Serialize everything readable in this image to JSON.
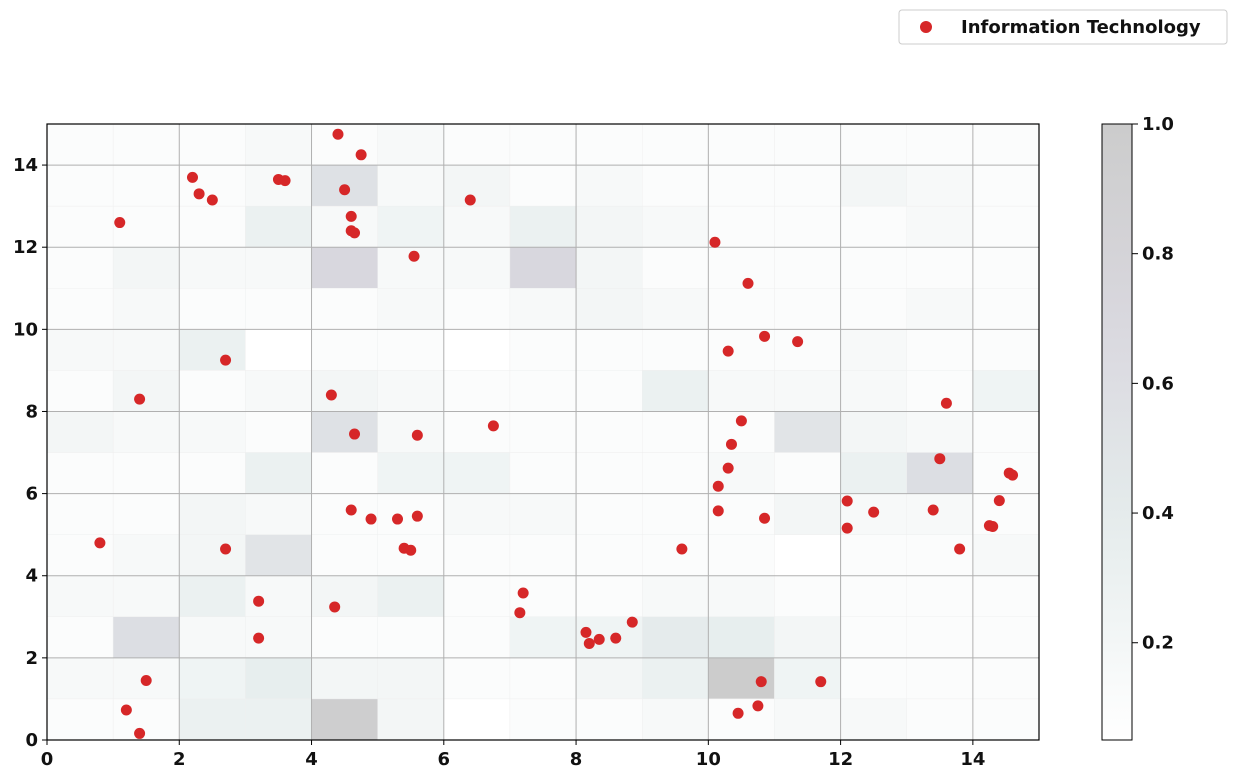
{
  "chart_data": {
    "type": "scatter",
    "title": "",
    "xlabel": "",
    "ylabel": "",
    "xlim": [
      0,
      15
    ],
    "ylim": [
      0,
      15
    ],
    "grid": true,
    "legend": {
      "placement": "top-right",
      "entries": [
        "Information Technology"
      ]
    },
    "x_ticks": [
      0,
      2,
      4,
      6,
      8,
      10,
      12,
      14
    ],
    "y_ticks": [
      0,
      2,
      4,
      6,
      8,
      10,
      12,
      14
    ],
    "series": [
      {
        "name": "Information Technology",
        "color": "#d62728",
        "points": [
          [
            0.8,
            4.8
          ],
          [
            1.1,
            12.6
          ],
          [
            1.4,
            8.3
          ],
          [
            1.5,
            1.45
          ],
          [
            1.2,
            0.73
          ],
          [
            1.4,
            0.16
          ],
          [
            2.2,
            13.7
          ],
          [
            2.3,
            13.3
          ],
          [
            2.5,
            13.15
          ],
          [
            2.7,
            9.25
          ],
          [
            2.7,
            4.65
          ],
          [
            3.2,
            3.38
          ],
          [
            3.2,
            2.48
          ],
          [
            3.5,
            13.65
          ],
          [
            3.6,
            13.62
          ],
          [
            4.4,
            14.75
          ],
          [
            4.5,
            13.4
          ],
          [
            4.75,
            14.25
          ],
          [
            4.6,
            12.75
          ],
          [
            4.6,
            12.4
          ],
          [
            4.65,
            12.35
          ],
          [
            4.3,
            8.4
          ],
          [
            4.65,
            7.45
          ],
          [
            4.6,
            5.6
          ],
          [
            4.9,
            5.38
          ],
          [
            4.35,
            3.24
          ],
          [
            5.3,
            5.38
          ],
          [
            5.4,
            4.67
          ],
          [
            5.5,
            4.62
          ],
          [
            5.55,
            11.78
          ],
          [
            5.6,
            7.42
          ],
          [
            5.6,
            5.45
          ],
          [
            6.4,
            13.15
          ],
          [
            6.75,
            7.65
          ],
          [
            7.15,
            3.1
          ],
          [
            7.2,
            3.58
          ],
          [
            8.15,
            2.62
          ],
          [
            8.2,
            2.35
          ],
          [
            8.35,
            2.45
          ],
          [
            8.6,
            2.48
          ],
          [
            8.85,
            2.87
          ],
          [
            9.6,
            4.65
          ],
          [
            10.1,
            12.12
          ],
          [
            10.3,
            9.47
          ],
          [
            10.6,
            11.12
          ],
          [
            10.85,
            9.83
          ],
          [
            10.5,
            7.77
          ],
          [
            10.35,
            7.2
          ],
          [
            10.3,
            6.62
          ],
          [
            10.15,
            6.18
          ],
          [
            10.15,
            5.58
          ],
          [
            10.85,
            5.4
          ],
          [
            10.8,
            1.42
          ],
          [
            10.75,
            0.83
          ],
          [
            10.45,
            0.65
          ],
          [
            11.35,
            9.7
          ],
          [
            11.7,
            1.42
          ],
          [
            12.1,
            5.82
          ],
          [
            12.1,
            5.16
          ],
          [
            12.5,
            5.55
          ],
          [
            13.4,
            5.6
          ],
          [
            13.5,
            6.85
          ],
          [
            13.6,
            8.2
          ],
          [
            13.8,
            4.65
          ],
          [
            14.25,
            5.22
          ],
          [
            14.3,
            5.2
          ],
          [
            14.4,
            5.83
          ],
          [
            14.55,
            6.5
          ],
          [
            14.6,
            6.45
          ]
        ]
      }
    ],
    "heatmap": {
      "cmap": [
        "#ffffff",
        "#e6eded",
        "#d9d8df",
        "#cccccc"
      ],
      "vmin": 0.05,
      "vmax": 1.0,
      "colorbar_ticks": [
        0.2,
        0.4,
        0.6,
        0.8,
        1.0
      ],
      "rows_top_to_bottom": [
        [
          0.1,
          0.1,
          0.1,
          0.15,
          0.1,
          0.15,
          0.1,
          0.1,
          0.1,
          0.1,
          0.1,
          0.1,
          0.1,
          0.1,
          0.1
        ],
        [
          0.1,
          0.1,
          0.1,
          0.15,
          0.55,
          0.15,
          0.2,
          0.1,
          0.15,
          0.1,
          0.1,
          0.1,
          0.2,
          0.15,
          0.1
        ],
        [
          0.1,
          0.1,
          0.1,
          0.3,
          0.15,
          0.25,
          0.15,
          0.3,
          0.2,
          0.15,
          0.1,
          0.1,
          0.1,
          0.15,
          0.1
        ],
        [
          0.1,
          0.2,
          0.15,
          0.15,
          0.7,
          0.15,
          0.15,
          0.7,
          0.2,
          0.1,
          0.1,
          0.1,
          0.1,
          0.1,
          0.1
        ],
        [
          0.1,
          0.15,
          0.1,
          0.1,
          0.1,
          0.15,
          0.1,
          0.15,
          0.2,
          0.15,
          0.1,
          0.1,
          0.1,
          0.15,
          0.1
        ],
        [
          0.15,
          0.15,
          0.3,
          0.05,
          0.1,
          0.1,
          0.05,
          0.1,
          0.1,
          0.1,
          0.1,
          0.1,
          0.15,
          0.1,
          0.1
        ],
        [
          0.1,
          0.2,
          0.1,
          0.15,
          0.2,
          0.15,
          0.1,
          0.1,
          0.1,
          0.3,
          0.15,
          0.15,
          0.15,
          0.1,
          0.25
        ],
        [
          0.2,
          0.15,
          0.15,
          0.1,
          0.55,
          0.15,
          0.1,
          0.1,
          0.1,
          0.1,
          0.1,
          0.5,
          0.2,
          0.15,
          0.1
        ],
        [
          0.1,
          0.1,
          0.1,
          0.3,
          0.1,
          0.25,
          0.25,
          0.1,
          0.1,
          0.1,
          0.15,
          0.1,
          0.3,
          0.6,
          0.1
        ],
        [
          0.1,
          0.1,
          0.2,
          0.15,
          0.1,
          0.1,
          0.15,
          0.15,
          0.1,
          0.1,
          0.1,
          0.2,
          0.15,
          0.15,
          0.1
        ],
        [
          0.1,
          0.15,
          0.2,
          0.5,
          0.1,
          0.1,
          0.1,
          0.1,
          0.1,
          0.1,
          0.1,
          0.05,
          0.1,
          0.1,
          0.15
        ],
        [
          0.15,
          0.15,
          0.3,
          0.15,
          0.2,
          0.3,
          0.1,
          0.1,
          0.1,
          0.15,
          0.15,
          0.1,
          0.1,
          0.1,
          0.1
        ],
        [
          0.1,
          0.6,
          0.15,
          0.15,
          0.1,
          0.1,
          0.1,
          0.25,
          0.25,
          0.4,
          0.35,
          0.2,
          0.1,
          0.1,
          0.1
        ],
        [
          0.15,
          0.15,
          0.25,
          0.35,
          0.2,
          0.2,
          0.1,
          0.1,
          0.2,
          0.3,
          1.0,
          0.25,
          0.1,
          0.1,
          0.1
        ],
        [
          0.1,
          0.1,
          0.3,
          0.3,
          0.95,
          0.2,
          0.05,
          0.1,
          0.1,
          0.15,
          0.1,
          0.15,
          0.15,
          0.1,
          0.1
        ]
      ]
    }
  }
}
